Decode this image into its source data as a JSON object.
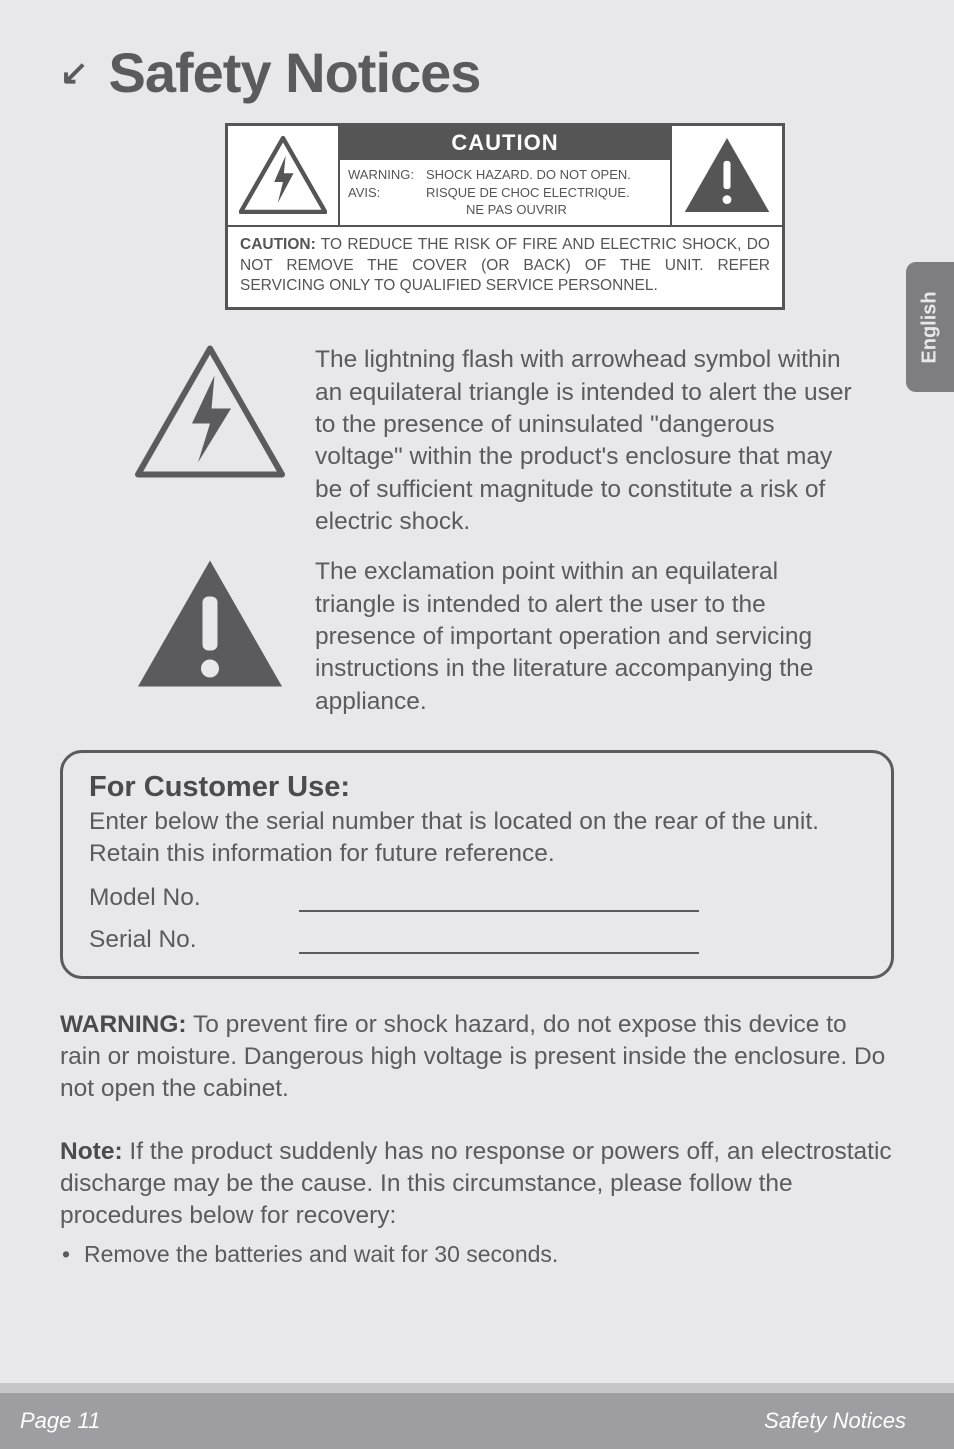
{
  "colors": {
    "page_bg": "#e8e8ec",
    "text": "#5a5a5f",
    "text_dark": "#4a4a4f",
    "box_border": "#555555",
    "footer_bg": "#9d9da2",
    "footer_band": "#c5c5ca",
    "tab_bg": "#7d7d82",
    "caution_banner_bg": "#555555",
    "white": "#ffffff"
  },
  "title": {
    "arrow": "↘",
    "text": "Safety Notices",
    "fontsize": 56
  },
  "caution_box": {
    "banner": "CAUTION",
    "lines": [
      {
        "label": "WARNING:",
        "text": "SHOCK HAZARD. DO NOT OPEN."
      },
      {
        "label": "AVIS:",
        "text": "RISQUE DE CHOC ELECTRIQUE."
      },
      {
        "label": "",
        "text": "NE PAS OUVRIR"
      }
    ],
    "bottom_html": "<b>CAUTION:</b> TO REDUCE THE RISK OF FIRE AND ELECTRIC SHOCK, DO NOT REMOVE THE COVER (OR BACK) OF THE UNIT. REFER SERVICING ONLY TO QUALIFIED SERVICE PERSONNEL."
  },
  "lang_tab": "English",
  "icon_paragraphs": [
    {
      "icon": "bolt",
      "text": "The lightning flash with arrowhead symbol within an equilateral triangle is intended to alert the user to the presence of uninsulated \"dangerous voltage\" within the product's enclosure that may be of sufficient magnitude to constitute a risk of electric shock."
    },
    {
      "icon": "exclaim",
      "text": "The exclamation point within an equilateral triangle is intended to alert the user to the presence of important operation and servicing instructions in the literature accompanying the appliance."
    }
  ],
  "customer_box": {
    "title": "For Customer Use:",
    "subtitle": "Enter below the serial number that is located on the rear of the unit. Retain this information for future reference.",
    "fields": [
      {
        "label": "Model No."
      },
      {
        "label": "Serial No."
      }
    ]
  },
  "warning_para_html": "<b>WARNING:</b> To prevent fire or shock hazard, do not expose this device to rain or moisture. Dangerous high voltage is present inside the enclosure. Do not open the cabinet.",
  "note_para_html": "<b>Note:</b> If the product suddenly has no response or powers off, an electrostatic discharge may be the cause.  In this circumstance, please follow the procedures below for recovery:",
  "bullets": [
    "Remove the batteries and wait for 30 seconds."
  ],
  "footer": {
    "left": "Page 11",
    "right": "Safety Notices"
  },
  "body_fontsize": 24.5
}
